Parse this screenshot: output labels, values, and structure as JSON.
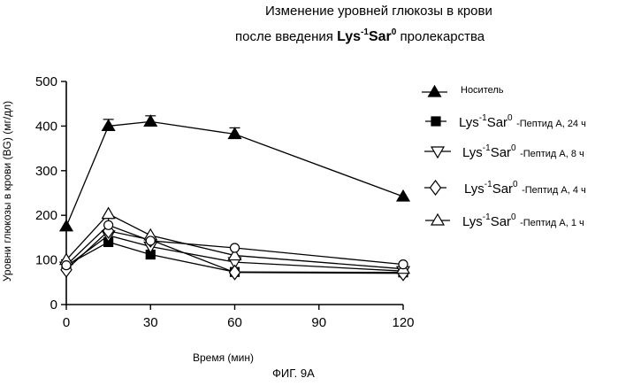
{
  "title": {
    "line1": "Изменение уровней глюкозы в крови",
    "line2_pre": "после введения",
    "line2_bold": "Lys",
    "line2_bold_sup1": "-1",
    "line2_bold_mid": "Sar",
    "line2_bold_sup2": "0",
    "line2_post": "пролекарства"
  },
  "figure_label": "ФИГ. 9А",
  "legend": {
    "vehicle": "Носитель",
    "compound_base": "Lys",
    "compound_sup1": "-1",
    "compound_mid": "Sar",
    "compound_sup2": "0",
    "desc_24h": "-Пептид А, 24 ч",
    "desc_8h": "-Пептид А, 8 ч",
    "desc_4h": "-Пептид А, 4 ч",
    "desc_1h": "-Пептид А, 1 ч"
  },
  "chart_data": {
    "type": "line",
    "xlabel": "Время (мин)",
    "ylabel": "Уровни глюкозы в крови (BG) (мг/дл)",
    "x": [
      0,
      15,
      30,
      60,
      120
    ],
    "xticks": [
      0,
      30,
      60,
      90,
      120
    ],
    "yticks": [
      0,
      100,
      200,
      300,
      400,
      500
    ],
    "xlim": [
      0,
      120
    ],
    "ylim": [
      0,
      500
    ],
    "grid": false,
    "legend_position": "right",
    "series": [
      {
        "name": "Носитель",
        "marker": "triangle-up-filled",
        "values": [
          175,
          400,
          410,
          382,
          242
        ],
        "err": [
          0,
          15,
          13,
          14,
          0
        ]
      },
      {
        "name": "Lys-1Sar0 -Пептид А, 24 ч",
        "marker": "square-filled",
        "values": [
          88,
          140,
          112,
          73,
          72
        ],
        "err": [
          0,
          0,
          0,
          0,
          0
        ]
      },
      {
        "name": "Lys-1Sar0 -Пептид А, 8 ч",
        "marker": "triangle-down-open",
        "values": [
          85,
          155,
          130,
          95,
          75
        ],
        "err": [
          0,
          0,
          0,
          0,
          0
        ]
      },
      {
        "name": "Lys-1Sar0 -Пептид А, 4 ч",
        "marker": "diamond-open",
        "values": [
          78,
          165,
          145,
          72,
          70
        ],
        "err": [
          0,
          0,
          0,
          0,
          0
        ]
      },
      {
        "name": "Lys-1Sar0 -Пептид А, 1 ч",
        "marker": "triangle-up-open",
        "values": [
          100,
          203,
          155,
          110,
          80
        ],
        "err": [
          0,
          0,
          0,
          0,
          0
        ]
      },
      {
        "name": "",
        "marker": "circle-open",
        "values": [
          88,
          178,
          143,
          127,
          90
        ],
        "err": [
          0,
          15,
          0,
          0,
          0
        ]
      }
    ]
  }
}
